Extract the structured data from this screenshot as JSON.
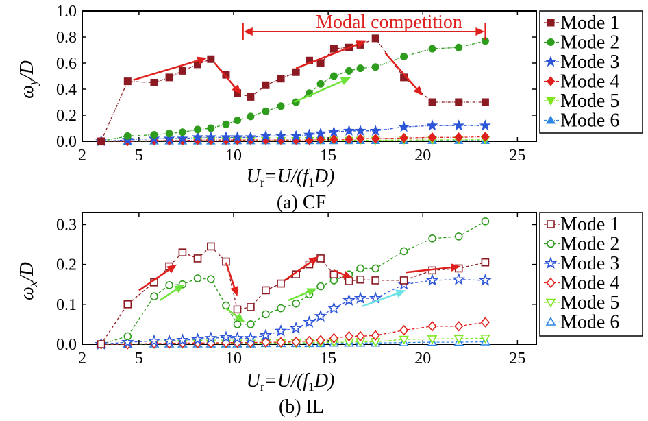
{
  "colors": {
    "mode1": "#8b1a22",
    "mode2": "#2e9c1c",
    "mode3": "#2d55d8",
    "mode4": "#e0201c",
    "mode5": "#7ee61e",
    "mode6": "#2f86e4",
    "arrow_red": "#e0201c",
    "arrow_green": "#6ee33a",
    "arrow_cyan": "#6fe4e8"
  },
  "chart_data": [
    {
      "type": "line",
      "panel": "a",
      "caption": "(a) CF",
      "xlabel": {
        "main": "U",
        "sub": "r",
        "rest": "=U/(f",
        "sub2": "1",
        "tail": "D)"
      },
      "ylabel": {
        "main": "ω",
        "sub": "y",
        "tail": "/D"
      },
      "xlim": [
        2,
        26
      ],
      "ylim": [
        0,
        1.0
      ],
      "xticks": [
        "2",
        "5",
        "10",
        "15",
        "20",
        "25"
      ],
      "yticks": [
        "0.0",
        "0.2",
        "0.4",
        "0.6",
        "0.8",
        "1.0"
      ],
      "grid": false,
      "legend_position": "right",
      "marker_fill": "filled",
      "annotation": "Modal competition",
      "annotation_span": [
        10.5,
        23.3
      ],
      "series": [
        {
          "name": "Mode 1",
          "marker": "square",
          "x": [
            3.0,
            4.4,
            5.8,
            6.6,
            7.3,
            8.1,
            8.8,
            9.6,
            10.2,
            10.9,
            11.7,
            12.5,
            13.3,
            14.0,
            14.6,
            15.3,
            16.1,
            16.7,
            17.5,
            19.0,
            20.5,
            21.9,
            23.3
          ],
          "y": [
            0.0,
            0.46,
            0.45,
            0.49,
            0.54,
            0.59,
            0.63,
            0.51,
            0.37,
            0.34,
            0.43,
            0.48,
            0.53,
            0.62,
            0.6,
            0.71,
            0.72,
            0.74,
            0.79,
            0.49,
            0.3,
            0.3,
            0.3
          ]
        },
        {
          "name": "Mode 2",
          "marker": "circle",
          "x": [
            3.0,
            4.4,
            5.8,
            6.6,
            7.3,
            8.1,
            8.8,
            9.6,
            10.2,
            10.9,
            11.7,
            12.5,
            13.3,
            14.0,
            14.6,
            15.3,
            16.1,
            16.7,
            17.5,
            19.0,
            20.5,
            21.9,
            23.3
          ],
          "y": [
            0.0,
            0.04,
            0.05,
            0.06,
            0.07,
            0.09,
            0.1,
            0.13,
            0.16,
            0.19,
            0.23,
            0.27,
            0.3,
            0.37,
            0.44,
            0.5,
            0.54,
            0.56,
            0.57,
            0.65,
            0.71,
            0.72,
            0.77
          ]
        },
        {
          "name": "Mode 3",
          "marker": "star",
          "x": [
            3.0,
            4.4,
            5.8,
            6.6,
            7.3,
            8.1,
            8.8,
            9.6,
            10.2,
            10.9,
            11.7,
            12.5,
            13.3,
            14.0,
            14.6,
            15.3,
            16.1,
            16.7,
            17.5,
            19.0,
            20.5,
            21.9,
            23.3
          ],
          "y": [
            0.0,
            0.01,
            0.02,
            0.02,
            0.02,
            0.03,
            0.03,
            0.03,
            0.03,
            0.03,
            0.04,
            0.04,
            0.04,
            0.05,
            0.06,
            0.07,
            0.08,
            0.08,
            0.08,
            0.11,
            0.12,
            0.12,
            0.12
          ]
        },
        {
          "name": "Mode 4",
          "marker": "diamond",
          "x": [
            3.0,
            4.4,
            5.8,
            6.6,
            7.3,
            8.1,
            8.8,
            9.6,
            10.2,
            10.9,
            11.7,
            12.5,
            13.3,
            14.0,
            14.6,
            15.3,
            16.1,
            16.7,
            17.5,
            19.0,
            20.5,
            21.9,
            23.3
          ],
          "y": [
            0.0,
            0.0,
            0.005,
            0.005,
            0.005,
            0.01,
            0.01,
            0.01,
            0.01,
            0.01,
            0.01,
            0.01,
            0.01,
            0.01,
            0.015,
            0.015,
            0.015,
            0.02,
            0.02,
            0.025,
            0.03,
            0.03,
            0.035
          ]
        },
        {
          "name": "Mode 5",
          "marker": "triangle-down",
          "x": [
            3.0,
            4.4,
            5.8,
            6.6,
            7.3,
            8.1,
            8.8,
            9.6,
            10.2,
            10.9,
            11.7,
            12.5,
            13.3,
            14.0,
            14.6,
            15.3,
            16.1,
            16.7,
            17.5,
            19.0,
            20.5,
            21.9,
            23.3
          ],
          "y": [
            0.0,
            0.0,
            0.003,
            0.003,
            0.003,
            0.004,
            0.004,
            0.004,
            0.004,
            0.005,
            0.005,
            0.005,
            0.005,
            0.006,
            0.006,
            0.007,
            0.007,
            0.008,
            0.008,
            0.01,
            0.01,
            0.012,
            0.012
          ]
        },
        {
          "name": "Mode 6",
          "marker": "triangle-up",
          "x": [
            3.0,
            4.4,
            5.8,
            6.6,
            7.3,
            8.1,
            8.8,
            9.6,
            10.2,
            10.9,
            11.7,
            12.5,
            13.3,
            14.0,
            14.6,
            15.3,
            16.1,
            16.7,
            17.5,
            19.0,
            20.5,
            21.9,
            23.3
          ],
          "y": [
            0.0,
            0.0,
            0.002,
            0.002,
            0.002,
            0.002,
            0.002,
            0.002,
            0.003,
            0.003,
            0.003,
            0.003,
            0.003,
            0.004,
            0.004,
            0.004,
            0.004,
            0.005,
            0.005,
            0.005,
            0.006,
            0.006,
            0.006
          ]
        }
      ],
      "arrows": [
        {
          "color": "red",
          "from": [
            4.7,
            0.47
          ],
          "to": [
            8.6,
            0.64
          ]
        },
        {
          "color": "red",
          "from": [
            9.0,
            0.6
          ],
          "to": [
            10.4,
            0.36
          ]
        },
        {
          "color": "red",
          "from": [
            13.3,
            0.56
          ],
          "to": [
            17.0,
            0.77
          ]
        },
        {
          "color": "red",
          "from": [
            18.0,
            0.68
          ],
          "to": [
            20.0,
            0.35
          ]
        },
        {
          "color": "green",
          "from": [
            13.2,
            0.3
          ],
          "to": [
            16.2,
            0.49
          ]
        }
      ]
    },
    {
      "type": "line",
      "panel": "b",
      "caption": "(b) IL",
      "xlabel": {
        "main": "U",
        "sub": "r",
        "rest": "=U/(f",
        "sub2": "1",
        "tail": "D)"
      },
      "ylabel": {
        "main": "ω",
        "sub": "x",
        "tail": "/D"
      },
      "xlim": [
        2,
        26
      ],
      "ylim": [
        0,
        0.33
      ],
      "xticks": [
        "2",
        "5",
        "10",
        "15",
        "20",
        "25"
      ],
      "yticks": [
        "0.0",
        "0.1",
        "0.2",
        "0.3"
      ],
      "grid": false,
      "legend_position": "right",
      "marker_fill": "open",
      "series": [
        {
          "name": "Mode 1",
          "marker": "square",
          "x": [
            3.0,
            4.4,
            5.8,
            6.6,
            7.3,
            8.1,
            8.8,
            9.6,
            10.2,
            10.9,
            11.7,
            12.5,
            13.3,
            14.0,
            14.6,
            15.3,
            16.1,
            16.7,
            17.5,
            19.0,
            20.5,
            21.9,
            23.3
          ],
          "y": [
            0.0,
            0.1,
            0.155,
            0.195,
            0.23,
            0.215,
            0.245,
            0.207,
            0.087,
            0.093,
            0.135,
            0.152,
            0.175,
            0.2,
            0.215,
            0.175,
            0.158,
            0.162,
            0.16,
            0.16,
            0.185,
            0.19,
            0.205
          ]
        },
        {
          "name": "Mode 2",
          "marker": "circle",
          "x": [
            3.0,
            4.4,
            5.8,
            6.6,
            7.3,
            8.1,
            8.8,
            9.6,
            10.2,
            10.9,
            11.7,
            12.5,
            13.3,
            14.0,
            14.6,
            15.3,
            16.1,
            16.7,
            17.5,
            19.0,
            20.5,
            21.9,
            23.3
          ],
          "y": [
            0.0,
            0.02,
            0.12,
            0.148,
            0.15,
            0.165,
            0.163,
            0.097,
            0.05,
            0.05,
            0.075,
            0.09,
            0.102,
            0.125,
            0.145,
            0.16,
            0.175,
            0.19,
            0.19,
            0.233,
            0.265,
            0.27,
            0.308
          ]
        },
        {
          "name": "Mode 3",
          "marker": "star",
          "x": [
            3.0,
            4.4,
            5.8,
            6.6,
            7.3,
            8.1,
            8.8,
            9.6,
            10.2,
            10.9,
            11.7,
            12.5,
            13.3,
            14.0,
            14.6,
            15.3,
            16.1,
            16.7,
            17.5,
            19.0,
            20.5,
            21.9,
            23.3
          ],
          "y": [
            0.0,
            0.005,
            0.008,
            0.008,
            0.01,
            0.012,
            0.015,
            0.017,
            0.015,
            0.015,
            0.022,
            0.033,
            0.04,
            0.055,
            0.07,
            0.09,
            0.11,
            0.115,
            0.115,
            0.15,
            0.16,
            0.162,
            0.16
          ]
        },
        {
          "name": "Mode 4",
          "marker": "diamond",
          "x": [
            3.0,
            4.4,
            5.8,
            6.6,
            7.3,
            8.1,
            8.8,
            9.6,
            10.2,
            10.9,
            11.7,
            12.5,
            13.3,
            14.0,
            14.6,
            15.3,
            16.1,
            16.7,
            17.5,
            19.0,
            20.5,
            21.9,
            23.3
          ],
          "y": [
            0.0,
            0.0,
            0.002,
            0.002,
            0.003,
            0.003,
            0.003,
            0.004,
            0.004,
            0.004,
            0.005,
            0.005,
            0.006,
            0.008,
            0.01,
            0.015,
            0.02,
            0.02,
            0.022,
            0.035,
            0.045,
            0.045,
            0.055
          ]
        },
        {
          "name": "Mode 5",
          "marker": "triangle-down",
          "x": [
            3.0,
            4.4,
            5.8,
            6.6,
            7.3,
            8.1,
            8.8,
            9.6,
            10.2,
            10.9,
            11.7,
            12.5,
            13.3,
            14.0,
            14.6,
            15.3,
            16.1,
            16.7,
            17.5,
            19.0,
            20.5,
            21.9,
            23.3
          ],
          "y": [
            0.0,
            0.0,
            0.001,
            0.001,
            0.001,
            0.002,
            0.002,
            0.002,
            0.002,
            0.002,
            0.003,
            0.003,
            0.003,
            0.004,
            0.004,
            0.005,
            0.005,
            0.006,
            0.006,
            0.012,
            0.013,
            0.014,
            0.015
          ]
        },
        {
          "name": "Mode 6",
          "marker": "triangle-up",
          "x": [
            3.0,
            4.4,
            5.8,
            6.6,
            7.3,
            8.1,
            8.8,
            9.6,
            10.2,
            10.9,
            11.7,
            12.5,
            13.3,
            14.0,
            14.6,
            15.3,
            16.1,
            16.7,
            17.5,
            19.0,
            20.5,
            21.9,
            23.3
          ],
          "y": [
            0.0,
            0.0,
            0.001,
            0.001,
            0.001,
            0.001,
            0.001,
            0.001,
            0.001,
            0.001,
            0.002,
            0.002,
            0.002,
            0.002,
            0.002,
            0.003,
            0.003,
            0.003,
            0.003,
            0.004,
            0.005,
            0.005,
            0.006
          ]
        }
      ],
      "arrows": [
        {
          "color": "red",
          "from": [
            5.0,
            0.135
          ],
          "to": [
            7.0,
            0.2
          ]
        },
        {
          "color": "red",
          "from": [
            9.6,
            0.205
          ],
          "to": [
            10.2,
            0.12
          ]
        },
        {
          "color": "red",
          "from": [
            12.7,
            0.16
          ],
          "to": [
            14.5,
            0.22
          ]
        },
        {
          "color": "red",
          "from": [
            15.3,
            0.185
          ],
          "to": [
            16.3,
            0.165
          ]
        },
        {
          "color": "red",
          "from": [
            19.1,
            0.18
          ],
          "to": [
            22.0,
            0.195
          ]
        },
        {
          "color": "green",
          "from": [
            6.1,
            0.11
          ],
          "to": [
            7.4,
            0.15
          ]
        },
        {
          "color": "green",
          "from": [
            9.6,
            0.09
          ],
          "to": [
            10.6,
            0.055
          ]
        },
        {
          "color": "green",
          "from": [
            12.9,
            0.11
          ],
          "to": [
            14.4,
            0.14
          ]
        },
        {
          "color": "cyan",
          "from": [
            16.8,
            0.095
          ],
          "to": [
            19.1,
            0.135
          ]
        }
      ]
    }
  ]
}
